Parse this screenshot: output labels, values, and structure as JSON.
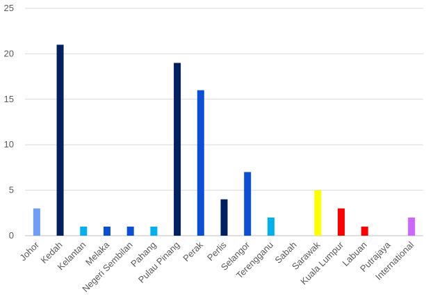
{
  "chart_data": {
    "type": "bar",
    "title": "",
    "xlabel": "",
    "ylabel": "",
    "ylim": [
      0,
      25
    ],
    "yticks": [
      0,
      5,
      10,
      15,
      20,
      25
    ],
    "grid": true,
    "legend": "none",
    "categories": [
      "Johor",
      "Kedah",
      "Kelantan",
      "Melaka",
      "Negeri Sembilan",
      "Pahang",
      "Pulau Pinang",
      "Perak",
      "Perlis",
      "Selangor",
      "Terengganu",
      "Sabah",
      "Sarawak",
      "Kuala Lumpur",
      "Labuan",
      "Putrajaya",
      "International"
    ],
    "values": [
      3,
      21,
      1,
      1,
      1,
      1,
      19,
      16,
      4,
      7,
      2,
      0,
      5,
      3,
      1,
      0,
      2
    ],
    "colors": [
      "#6e9ef5",
      "#002060",
      "#00b0f0",
      "#0b4fd6",
      "#0b4fd6",
      "#00b0f0",
      "#002060",
      "#0b4fd6",
      "#002060",
      "#0b4fd6",
      "#00b0f0",
      "#00b0f0",
      "#ffff00",
      "#ff0000",
      "#ff0000",
      "#ff0000",
      "#cc66ff"
    ]
  }
}
